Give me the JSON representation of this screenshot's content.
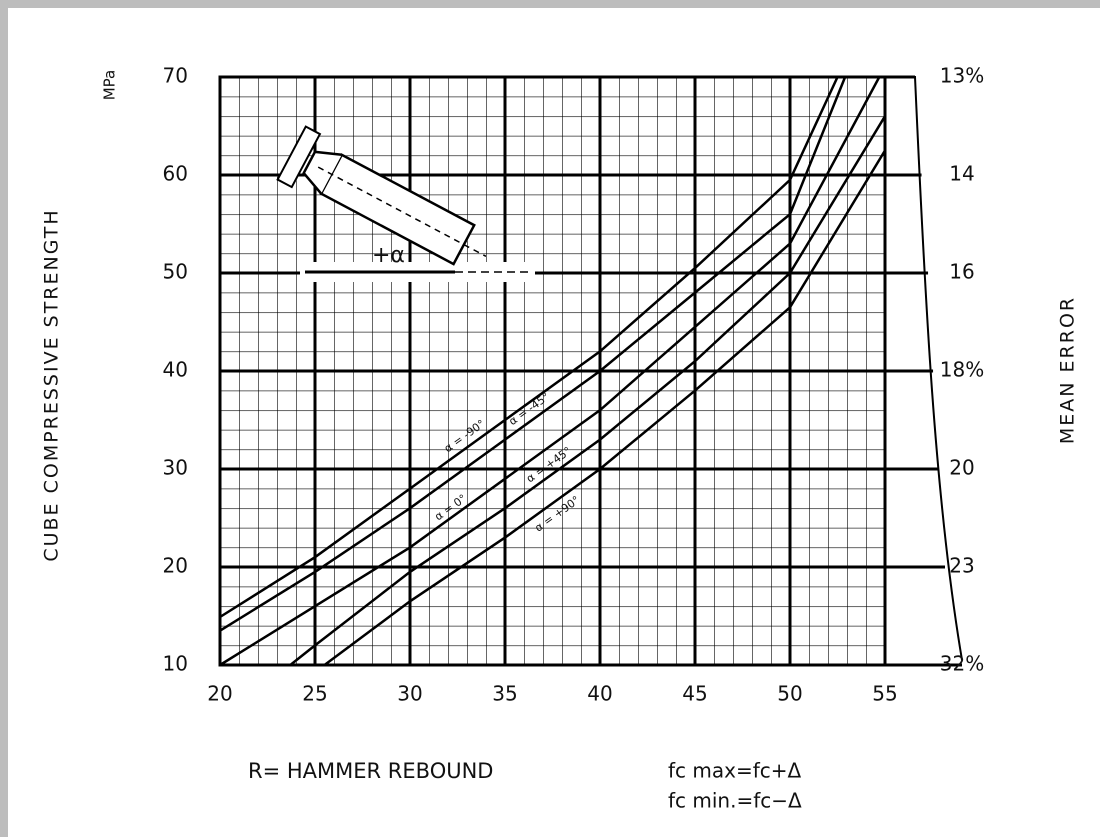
{
  "chart_data": {
    "type": "line",
    "unit_label": "MPa",
    "ylabel": "CUBE COMPRESSIVE STRENGTH",
    "xlabel": "R= HAMMER REBOUND",
    "y2label": "MEAN ERROR",
    "annotation": "+α",
    "formulas": [
      "fc  max=fc+Δ",
      "fc  min.=fc−Δ"
    ],
    "xlim": [
      20,
      55
    ],
    "ylim": [
      10,
      70
    ],
    "xticks": [
      20,
      25,
      30,
      35,
      40,
      45,
      50,
      55
    ],
    "yticks": [
      10,
      20,
      30,
      40,
      50,
      60,
      70
    ],
    "grid": true,
    "mean_error_labels": [
      {
        "value": 70,
        "label": "13%"
      },
      {
        "value": 60,
        "label": "14"
      },
      {
        "value": 50,
        "label": "16"
      },
      {
        "value": 40,
        "label": "18%"
      },
      {
        "value": 30,
        "label": "20"
      },
      {
        "value": 20,
        "label": "23"
      },
      {
        "value": 10,
        "label": "32%"
      }
    ],
    "series": [
      {
        "name": "α = -90°",
        "color": "#000000",
        "x": [
          20,
          25,
          30,
          35,
          40,
          45,
          50,
          52.5
        ],
        "values": [
          14.9,
          21,
          28,
          35,
          42,
          50.5,
          59.5,
          70
        ]
      },
      {
        "name": "α = -45°",
        "color": "#000000",
        "x": [
          20,
          25,
          30,
          35,
          40,
          45,
          50,
          52.9
        ],
        "values": [
          13.5,
          19.5,
          26,
          33,
          40,
          48,
          56,
          70
        ]
      },
      {
        "name": "α = 0°",
        "color": "#000000",
        "x": [
          20,
          25,
          30,
          35,
          40,
          45,
          50,
          54.7
        ],
        "values": [
          10,
          16,
          22,
          29,
          36,
          44.5,
          53,
          70
        ]
      },
      {
        "name": "α = +45°",
        "color": "#000000",
        "x": [
          23.7,
          25,
          30,
          35,
          40,
          45,
          50,
          55
        ],
        "values": [
          10,
          12,
          19.5,
          26,
          33,
          41,
          50,
          66
        ]
      },
      {
        "name": "α = +90°",
        "color": "#000000",
        "x": [
          25.5,
          30,
          35,
          40,
          45,
          50,
          55
        ],
        "values": [
          10,
          16.5,
          23,
          30,
          38,
          46.5,
          62.5
        ]
      }
    ]
  }
}
